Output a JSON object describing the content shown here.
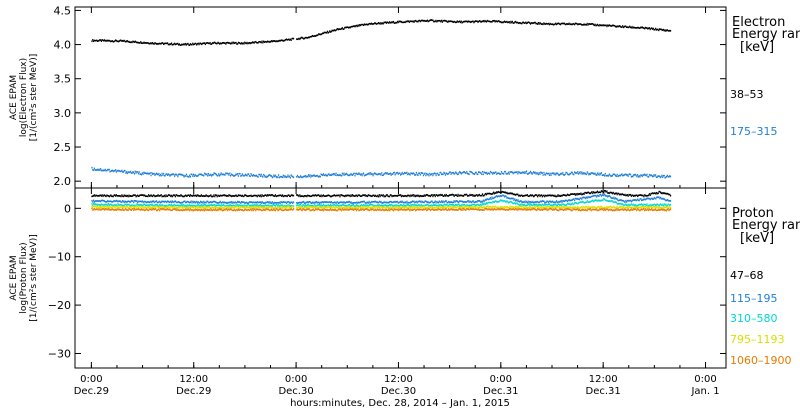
{
  "chart_data": [
    {
      "type": "scatter",
      "panel": "electron",
      "ylabel_lines": [
        "ACE EPAM",
        "log(Electron Flux)",
        "[1/(cm²s ster MeV)]"
      ],
      "ylim": [
        1.9,
        4.55
      ],
      "y_ticks": [
        "4.5",
        "4.0",
        "3.5",
        "3.0",
        "2.5",
        "2.0"
      ],
      "legend_title": [
        "Electron",
        "Energy ranges",
        "[keV]"
      ],
      "series": [
        {
          "name": "38–53",
          "color": "#000000",
          "points": [
            [
              0.0,
              4.06
            ],
            [
              0.15,
              4.05
            ],
            [
              0.3,
              4.02
            ],
            [
              0.45,
              4.0
            ],
            [
              0.6,
              4.02
            ],
            [
              0.75,
              4.02
            ],
            [
              0.9,
              4.05
            ],
            [
              1.05,
              4.1
            ],
            [
              1.2,
              4.22
            ],
            [
              1.35,
              4.3
            ],
            [
              1.5,
              4.33
            ],
            [
              1.65,
              4.35
            ],
            [
              1.8,
              4.33
            ],
            [
              1.95,
              4.34
            ],
            [
              2.1,
              4.32
            ],
            [
              2.25,
              4.3
            ],
            [
              2.4,
              4.3
            ],
            [
              2.55,
              4.27
            ],
            [
              2.7,
              4.24
            ],
            [
              2.83,
              4.2
            ]
          ]
        },
        {
          "name": "175–315",
          "color": "#1f7fd8",
          "points": [
            [
              0.0,
              2.18
            ],
            [
              0.15,
              2.14
            ],
            [
              0.3,
              2.1
            ],
            [
              0.45,
              2.08
            ],
            [
              0.6,
              2.1
            ],
            [
              0.75,
              2.09
            ],
            [
              0.9,
              2.07
            ],
            [
              1.05,
              2.07
            ],
            [
              1.2,
              2.1
            ],
            [
              1.35,
              2.1
            ],
            [
              1.5,
              2.11
            ],
            [
              1.65,
              2.1
            ],
            [
              1.8,
              2.12
            ],
            [
              1.95,
              2.12
            ],
            [
              2.1,
              2.13
            ],
            [
              2.25,
              2.1
            ],
            [
              2.4,
              2.12
            ],
            [
              2.55,
              2.09
            ],
            [
              2.7,
              2.08
            ],
            [
              2.83,
              2.06
            ]
          ]
        }
      ]
    },
    {
      "type": "scatter",
      "panel": "proton",
      "ylabel_lines": [
        "ACE EPAM",
        "log(Proton Flux)",
        "[1/(cm²s ster MeV)]"
      ],
      "ylim": [
        -33,
        4.2
      ],
      "y_ticks": [
        "0",
        "−10",
        "−20",
        "−30"
      ],
      "legend_title": [
        "Proton",
        "Energy ranges",
        "[keV]"
      ],
      "series": [
        {
          "name": "47–68",
          "color": "#000000",
          "points": [
            [
              0.0,
              2.6
            ],
            [
              0.4,
              2.6
            ],
            [
              0.6,
              2.6
            ],
            [
              1.0,
              2.6
            ],
            [
              1.5,
              2.6
            ],
            [
              1.9,
              2.7
            ],
            [
              2.0,
              3.4
            ],
            [
              2.1,
              2.6
            ],
            [
              2.3,
              2.6
            ],
            [
              2.5,
              3.5
            ],
            [
              2.6,
              2.7
            ],
            [
              2.7,
              2.6
            ],
            [
              2.77,
              3.3
            ],
            [
              2.83,
              2.7
            ]
          ]
        },
        {
          "name": "115–195",
          "color": "#1f7fd8",
          "points": [
            [
              0.0,
              1.5
            ],
            [
              0.4,
              1.3
            ],
            [
              0.8,
              1.2
            ],
            [
              1.2,
              1.2
            ],
            [
              1.6,
              1.3
            ],
            [
              1.9,
              1.4
            ],
            [
              2.0,
              2.7
            ],
            [
              2.1,
              1.3
            ],
            [
              2.3,
              1.4
            ],
            [
              2.5,
              2.8
            ],
            [
              2.6,
              1.4
            ],
            [
              2.77,
              2.2
            ],
            [
              2.83,
              1.4
            ]
          ]
        },
        {
          "name": "310–580",
          "color": "#00d8d0",
          "points": [
            [
              0.0,
              0.8
            ],
            [
              0.4,
              0.6
            ],
            [
              0.8,
              0.6
            ],
            [
              1.2,
              0.6
            ],
            [
              1.6,
              0.6
            ],
            [
              1.9,
              0.7
            ],
            [
              2.0,
              1.6
            ],
            [
              2.1,
              0.7
            ],
            [
              2.3,
              0.7
            ],
            [
              2.5,
              1.8
            ],
            [
              2.6,
              0.7
            ],
            [
              2.83,
              0.7
            ]
          ]
        },
        {
          "name": "795–1193",
          "color": "#d8e000",
          "points": [
            [
              0.0,
              0.3
            ],
            [
              0.4,
              0.2
            ],
            [
              0.8,
              0.2
            ],
            [
              1.2,
              0.2
            ],
            [
              1.6,
              0.2
            ],
            [
              2.0,
              0.3
            ],
            [
              2.4,
              0.2
            ],
            [
              2.83,
              0.2
            ]
          ]
        },
        {
          "name": "1060–1900",
          "color": "#e87a00",
          "points": [
            [
              0.0,
              -0.2
            ],
            [
              0.4,
              -0.3
            ],
            [
              0.8,
              -0.3
            ],
            [
              1.2,
              -0.3
            ],
            [
              1.6,
              -0.3
            ],
            [
              2.0,
              -0.2
            ],
            [
              2.4,
              -0.3
            ],
            [
              2.83,
              -0.3
            ]
          ]
        }
      ]
    }
  ],
  "x_axis": {
    "range_days": [
      -0.08,
      3.1
    ],
    "data_gap_days": [
      0.985,
      1.0
    ],
    "tick_labels": [
      {
        "at": 0.0,
        "time": "0:00",
        "date": "Dec.29"
      },
      {
        "at": 0.5,
        "time": "12:00",
        "date": "Dec.29"
      },
      {
        "at": 1.0,
        "time": "0:00",
        "date": "Dec.30"
      },
      {
        "at": 1.5,
        "time": "12:00",
        "date": "Dec.30"
      },
      {
        "at": 2.0,
        "time": "0:00",
        "date": "Dec.31"
      },
      {
        "at": 2.5,
        "time": "12:00",
        "date": "Dec.31"
      },
      {
        "at": 3.0,
        "time": "0:00",
        "date": "Jan. 1"
      }
    ],
    "xlabel": "hours:minutes, Dec. 28, 2014 – Jan.  1, 2015"
  }
}
